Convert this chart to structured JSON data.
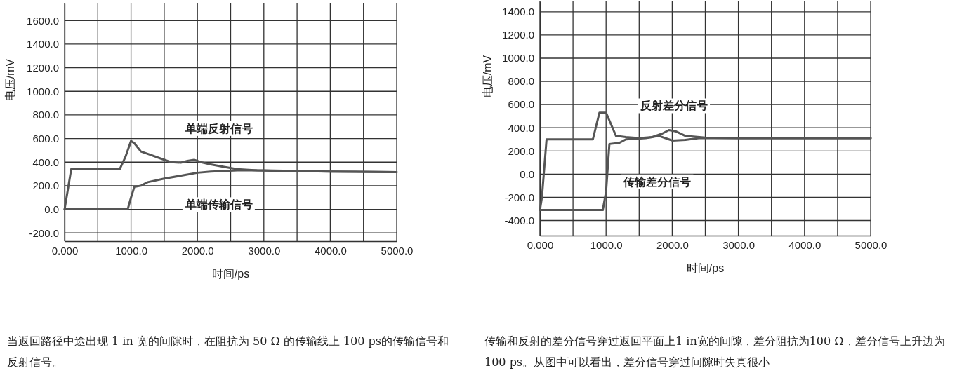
{
  "chart_data": [
    {
      "type": "line",
      "xlabel": "时间/ps",
      "ylabel": "电压/mV",
      "xlim": [
        0,
        5000
      ],
      "ylim": [
        -270,
        1750
      ],
      "xticks": [
        {
          "value": 0,
          "label": "0.000"
        },
        {
          "value": 500,
          "label": null
        },
        {
          "value": 1000,
          "label": "1000.0"
        },
        {
          "value": 1500,
          "label": null
        },
        {
          "value": 2000,
          "label": "2000.0"
        },
        {
          "value": 2500,
          "label": null
        },
        {
          "value": 3000,
          "label": "3000.0"
        },
        {
          "value": 3500,
          "label": null
        },
        {
          "value": 4000,
          "label": "4000.0"
        },
        {
          "value": 4500,
          "label": null
        },
        {
          "value": 5000,
          "label": "5000.0"
        }
      ],
      "yticks": [
        {
          "value": -200,
          "label": "-200.0"
        },
        {
          "value": 0,
          "label": "0.0"
        },
        {
          "value": 200,
          "label": "200.0"
        },
        {
          "value": 400,
          "label": "400.0"
        },
        {
          "value": 600,
          "label": "600.0"
        },
        {
          "value": 800,
          "label": "800.0"
        },
        {
          "value": 1000,
          "label": "1000.0"
        },
        {
          "value": 1200,
          "label": "1200.0"
        },
        {
          "value": 1400,
          "label": "1400.0"
        },
        {
          "value": 1600,
          "label": "1600.0"
        }
      ],
      "grid": true,
      "series": [
        {
          "name": "单端反射信号",
          "color": "#555555",
          "x": [
            0,
            100,
            830,
            920,
            1000,
            1050,
            1150,
            1250,
            1400,
            1600,
            1750,
            1850,
            1950,
            2050,
            2200,
            2400,
            2600,
            2900,
            3200,
            4000,
            5000
          ],
          "values": [
            0,
            340,
            340,
            450,
            580,
            560,
            490,
            470,
            440,
            400,
            395,
            410,
            420,
            400,
            380,
            360,
            340,
            330,
            325,
            320,
            315
          ]
        },
        {
          "name": "单端传输信号",
          "color": "#555555",
          "x": [
            0,
            950,
            1000,
            1050,
            1150,
            1250,
            1500,
            1800,
            2000,
            2200,
            2600,
            3000,
            4000,
            5000
          ],
          "values": [
            0,
            0,
            100,
            190,
            200,
            230,
            260,
            290,
            310,
            320,
            330,
            330,
            320,
            315
          ]
        }
      ],
      "annotations": [
        "当返回路径中途出现 1 in 宽的间隙时，在阻抗为 50 Ω 的传输线上 100 ps的传输信号和反射信号。"
      ]
    },
    {
      "type": "line",
      "xlabel": "时间/ps",
      "ylabel": "电压/mV",
      "xlim": [
        0,
        5000
      ],
      "ylim": [
        -530,
        1490
      ],
      "xticks": [
        {
          "value": 0,
          "label": "0.000"
        },
        {
          "value": 500,
          "label": null
        },
        {
          "value": 1000,
          "label": "1000.0"
        },
        {
          "value": 1500,
          "label": null
        },
        {
          "value": 2000,
          "label": "2000.0"
        },
        {
          "value": 2500,
          "label": null
        },
        {
          "value": 3000,
          "label": "3000.0"
        },
        {
          "value": 3500,
          "label": null
        },
        {
          "value": 4000,
          "label": "4000.0"
        },
        {
          "value": 4500,
          "label": null
        },
        {
          "value": 5000,
          "label": "5000.0"
        }
      ],
      "yticks": [
        {
          "value": -400,
          "label": "-400.0"
        },
        {
          "value": -200,
          "label": "-200.0"
        },
        {
          "value": 0,
          "label": "0.0"
        },
        {
          "value": 200,
          "label": "200.0"
        },
        {
          "value": 400,
          "label": "400.0"
        },
        {
          "value": 600,
          "label": "600.0"
        },
        {
          "value": 800,
          "label": "800.0"
        },
        {
          "value": 1000,
          "label": "1000.0"
        },
        {
          "value": 1200,
          "label": "1200.0"
        },
        {
          "value": 1400,
          "label": "1400.0"
        }
      ],
      "grid": true,
      "series": [
        {
          "name": "反射差分信号",
          "color": "#555555",
          "x": [
            0,
            30,
            100,
            800,
            900,
            1000,
            1150,
            1300,
            1500,
            1700,
            1850,
            1950,
            2050,
            2200,
            2500,
            3000,
            5000
          ],
          "values": [
            -310,
            -200,
            300,
            300,
            530,
            530,
            330,
            320,
            310,
            320,
            350,
            380,
            370,
            330,
            315,
            310,
            310
          ]
        },
        {
          "name": "传输差分信号",
          "color": "#555555",
          "x": [
            0,
            950,
            1000,
            1050,
            1200,
            1300,
            1600,
            1800,
            1950,
            2000,
            2200,
            2400,
            3000,
            5000
          ],
          "values": [
            -310,
            -310,
            -150,
            260,
            270,
            300,
            310,
            330,
            300,
            290,
            295,
            310,
            310,
            310
          ]
        }
      ],
      "annotations": [
        "传输和反射的差分信号穿过返回平面上1 in宽的间隙，差分阻抗为100 Ω，差分信号上升边为100 ps。从图中可以看出，差分信号穿过间隙时失真很小"
      ]
    }
  ]
}
